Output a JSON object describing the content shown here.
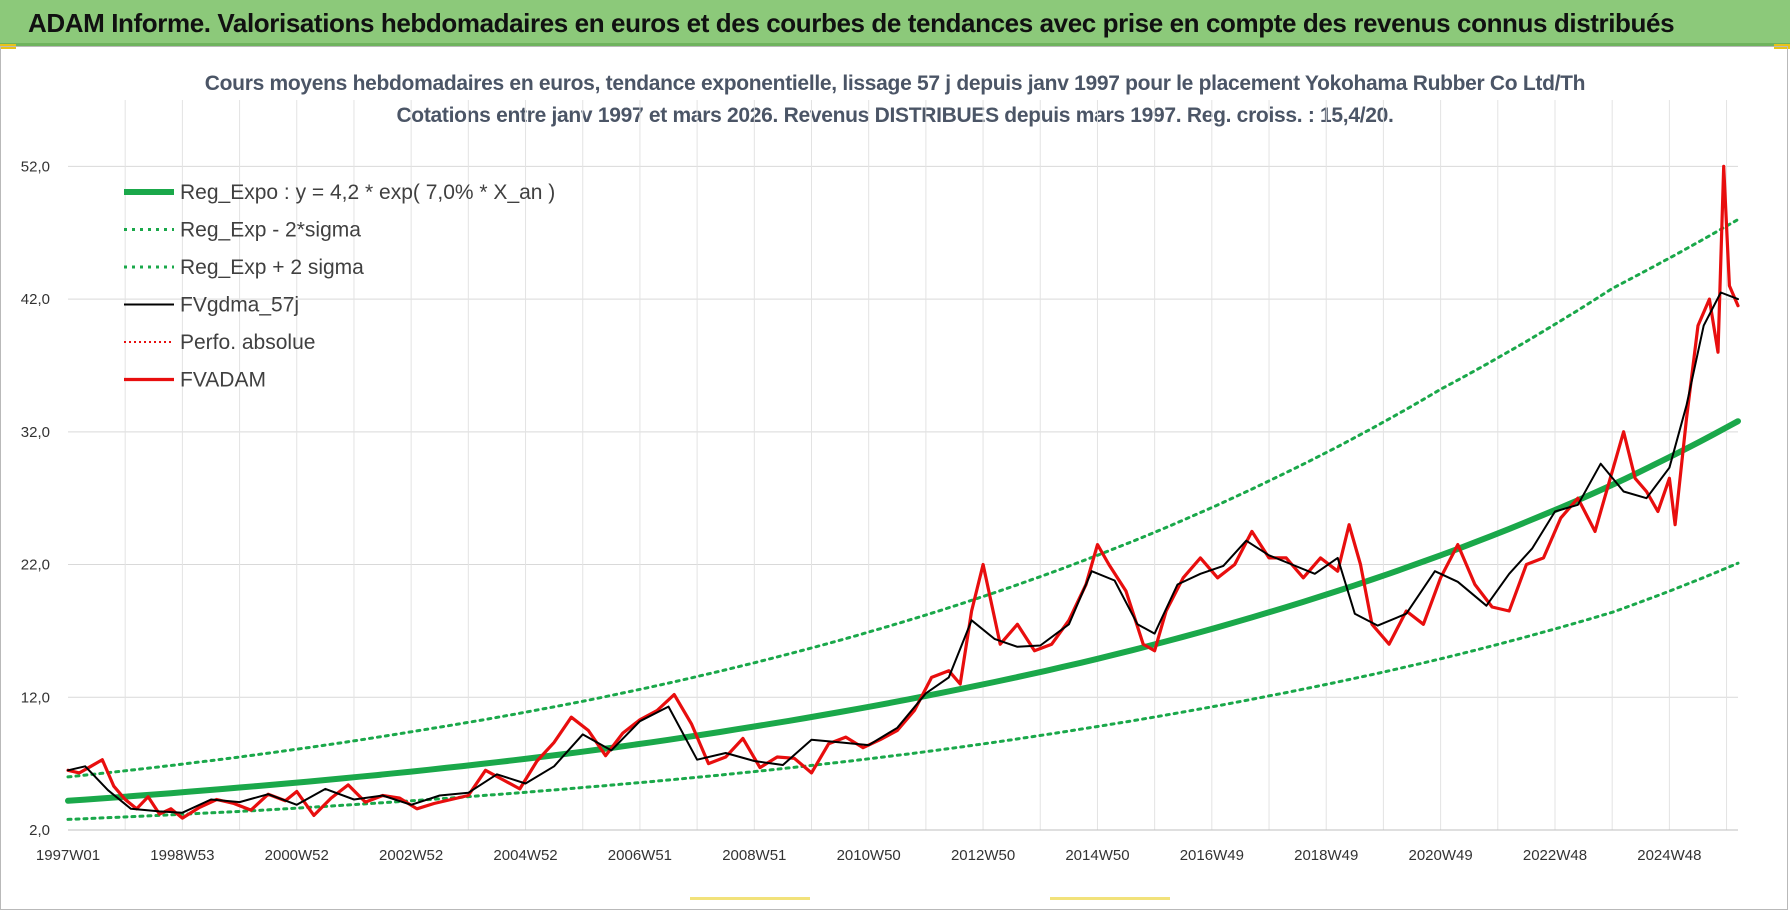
{
  "banner": {
    "title": "ADAM Informe. Valorisations hebdomadaires en euros et des courbes de tendances avec prise en compte des revenus connus distribués"
  },
  "colors": {
    "banner_bg": "#8cc97a",
    "reg_expo": "#1aa84a",
    "fvgdma": "#000000",
    "fvadam": "#e80e0e",
    "perfo": "#e80e0e"
  },
  "chart_data": {
    "type": "line",
    "title": "Cours moyens hebdomadaires en euros, tendance exponentielle, lissage 57 j depuis janv 1997 pour le placement Yokohama Rubber Co Ltd/Th",
    "subtitle": "Cotations entre janv 1997 et mars 2026. Revenus DISTRIBUES depuis mars 1997. Reg. croiss. : 15,4/20.",
    "xlabel": "",
    "ylabel": "",
    "x_range": [
      1997.0,
      2026.2
    ],
    "ylim": [
      2.0,
      57.0
    ],
    "y_ticks": [
      "2,0",
      "12,0",
      "22,0",
      "32,0",
      "42,0",
      "52,0"
    ],
    "y_tick_values": [
      2,
      12,
      22,
      32,
      42,
      52
    ],
    "x_tick_labels": [
      "1997W01",
      "1998W53",
      "2000W52",
      "2002W52",
      "2004W52",
      "2006W51",
      "2008W51",
      "2010W50",
      "2012W50",
      "2014W50",
      "2016W49",
      "2018W49",
      "2020W49",
      "2022W48",
      "2024W48"
    ],
    "x_tick_values": [
      1997.0,
      1999.0,
      2001.0,
      2003.0,
      2005.0,
      2007.0,
      2009.0,
      2011.0,
      2013.0,
      2015.0,
      2017.0,
      2019.0,
      2021.0,
      2023.0,
      2025.0
    ],
    "grid": true,
    "legend_position": "top-left",
    "legend": [
      "Reg_Expo : y = 4,2 * exp( 7,0% *  X_an )",
      "Reg_Exp - 2*sigma",
      "Reg_Exp + 2 sigma",
      "FVgdma_57j",
      "Perfo. absolue",
      "FVADAM"
    ],
    "series": [
      {
        "name": "Reg_Expo : y = 4,2 * exp( 7,0% *  X_an )",
        "style": "thick-solid",
        "color": "#1aa84a",
        "x": [
          1997.0,
          2000.0,
          2003.0,
          2006.0,
          2009.0,
          2012.0,
          2015.0,
          2018.0,
          2021.0,
          2024.0,
          2026.2
        ],
        "values": [
          4.2,
          5.2,
          6.4,
          7.9,
          9.8,
          12.1,
          14.9,
          18.4,
          22.7,
          28.0,
          32.8
        ]
      },
      {
        "name": "Reg_Exp - 2*sigma",
        "style": "dotted",
        "color": "#1aa84a",
        "x": [
          1997.0,
          2000.0,
          2003.0,
          2006.0,
          2009.0,
          2012.0,
          2015.0,
          2018.0,
          2021.0,
          2024.0,
          2026.2
        ],
        "values": [
          2.8,
          3.4,
          4.2,
          5.2,
          6.4,
          7.9,
          9.8,
          12.1,
          14.9,
          18.4,
          22.1
        ]
      },
      {
        "name": "Reg_Exp + 2 sigma",
        "style": "dotted",
        "color": "#1aa84a",
        "x": [
          1997.0,
          2000.0,
          2003.0,
          2006.0,
          2009.0,
          2012.0,
          2015.0,
          2018.0,
          2021.0,
          2024.0,
          2026.2
        ],
        "values": [
          6.0,
          7.5,
          9.4,
          11.7,
          14.6,
          18.2,
          22.7,
          28.3,
          35.2,
          42.8,
          48.0
        ]
      },
      {
        "name": "FVgdma_57j",
        "style": "solid",
        "color": "#000000",
        "x": [
          1997.0,
          1997.3,
          1997.7,
          1998.1,
          1998.6,
          1999.0,
          1999.5,
          2000.0,
          2000.5,
          2001.0,
          2001.5,
          2002.0,
          2002.5,
          2003.0,
          2003.5,
          2004.0,
          2004.5,
          2005.0,
          2005.5,
          2006.0,
          2006.5,
          2007.0,
          2007.5,
          2008.0,
          2008.5,
          2009.0,
          2009.5,
          2010.0,
          2010.5,
          2011.0,
          2011.5,
          2012.0,
          2012.4,
          2012.8,
          2013.2,
          2013.6,
          2014.0,
          2014.5,
          2014.9,
          2015.3,
          2015.7,
          2016.0,
          2016.4,
          2016.8,
          2017.2,
          2017.6,
          2018.0,
          2018.4,
          2018.8,
          2019.2,
          2019.5,
          2019.9,
          2020.4,
          2020.9,
          2021.3,
          2021.8,
          2022.2,
          2022.6,
          2023.0,
          2023.4,
          2023.8,
          2024.2,
          2024.6,
          2025.0,
          2025.3,
          2025.6,
          2025.9,
          2026.2
        ],
        "values": [
          6.5,
          6.8,
          5.0,
          3.6,
          3.4,
          3.3,
          4.3,
          4.1,
          4.7,
          3.9,
          5.1,
          4.3,
          4.6,
          3.9,
          4.6,
          4.8,
          6.2,
          5.5,
          6.8,
          9.2,
          8.0,
          10.2,
          11.3,
          7.3,
          7.8,
          7.2,
          6.9,
          8.8,
          8.6,
          8.4,
          9.7,
          12.3,
          13.5,
          17.8,
          16.4,
          15.8,
          15.9,
          17.5,
          21.5,
          20.8,
          17.5,
          16.8,
          20.5,
          21.3,
          21.9,
          23.8,
          22.7,
          22.0,
          21.3,
          22.5,
          18.3,
          17.4,
          18.3,
          21.5,
          20.7,
          18.9,
          21.3,
          23.2,
          26.0,
          26.5,
          29.6,
          27.5,
          27.0,
          29.3,
          34.0,
          40.0,
          42.5,
          42.0
        ]
      },
      {
        "name": "Perfo. absolue",
        "style": "dotted",
        "color": "#e80e0e",
        "x": [],
        "values": []
      },
      {
        "name": "FVADAM",
        "style": "thick-solid",
        "color": "#e80e0e",
        "x": [
          1997.0,
          1997.2,
          1997.4,
          1997.6,
          1997.8,
          1998.0,
          1998.2,
          1998.4,
          1998.6,
          1998.8,
          1999.0,
          1999.3,
          1999.6,
          1999.9,
          2000.2,
          2000.5,
          2000.8,
          2001.0,
          2001.3,
          2001.6,
          2001.9,
          2002.2,
          2002.5,
          2002.8,
          2003.1,
          2003.4,
          2003.7,
          2004.0,
          2004.3,
          2004.6,
          2004.9,
          2005.2,
          2005.5,
          2005.8,
          2006.1,
          2006.4,
          2006.7,
          2007.0,
          2007.3,
          2007.6,
          2007.9,
          2008.2,
          2008.5,
          2008.8,
          2009.1,
          2009.4,
          2009.7,
          2010.0,
          2010.3,
          2010.6,
          2010.9,
          2011.2,
          2011.5,
          2011.8,
          2012.1,
          2012.4,
          2012.6,
          2012.8,
          2013.0,
          2013.3,
          2013.6,
          2013.9,
          2014.2,
          2014.5,
          2014.8,
          2015.0,
          2015.2,
          2015.5,
          2015.8,
          2016.0,
          2016.2,
          2016.5,
          2016.8,
          2017.1,
          2017.4,
          2017.7,
          2018.0,
          2018.3,
          2018.6,
          2018.9,
          2019.2,
          2019.4,
          2019.6,
          2019.8,
          2020.1,
          2020.4,
          2020.7,
          2021.0,
          2021.3,
          2021.6,
          2021.9,
          2022.2,
          2022.5,
          2022.8,
          2023.1,
          2023.4,
          2023.7,
          2024.0,
          2024.2,
          2024.4,
          2024.6,
          2024.8,
          2025.0,
          2025.1,
          2025.3,
          2025.5,
          2025.7,
          2025.85,
          2025.95,
          2026.05,
          2026.2
        ],
        "values": [
          6.5,
          6.3,
          6.8,
          7.3,
          5.3,
          4.3,
          3.6,
          4.5,
          3.2,
          3.6,
          2.9,
          3.7,
          4.3,
          4.0,
          3.5,
          4.7,
          4.2,
          4.9,
          3.1,
          4.4,
          5.4,
          4.1,
          4.6,
          4.4,
          3.6,
          4.0,
          4.3,
          4.6,
          6.5,
          5.8,
          5.1,
          7.2,
          8.6,
          10.5,
          9.5,
          7.6,
          9.3,
          10.3,
          11.0,
          12.2,
          10.0,
          7.0,
          7.5,
          8.9,
          6.7,
          7.5,
          7.4,
          6.3,
          8.5,
          9.0,
          8.2,
          8.8,
          9.5,
          11.0,
          13.5,
          14.0,
          13.0,
          18.5,
          22.0,
          16.0,
          17.5,
          15.5,
          16.0,
          17.8,
          20.5,
          23.5,
          22.0,
          20.0,
          16.0,
          15.5,
          18.5,
          21.0,
          22.5,
          21.0,
          22.0,
          24.5,
          22.5,
          22.5,
          21.0,
          22.5,
          21.5,
          25.0,
          22.0,
          17.5,
          16.0,
          18.5,
          17.5,
          21.0,
          23.5,
          20.5,
          18.8,
          18.5,
          22.0,
          22.5,
          25.5,
          27.0,
          24.5,
          29.0,
          32.0,
          28.5,
          27.5,
          26.0,
          28.5,
          25.0,
          33.0,
          40.0,
          42.0,
          38.0,
          52.0,
          43.0,
          41.5
        ]
      }
    ]
  }
}
